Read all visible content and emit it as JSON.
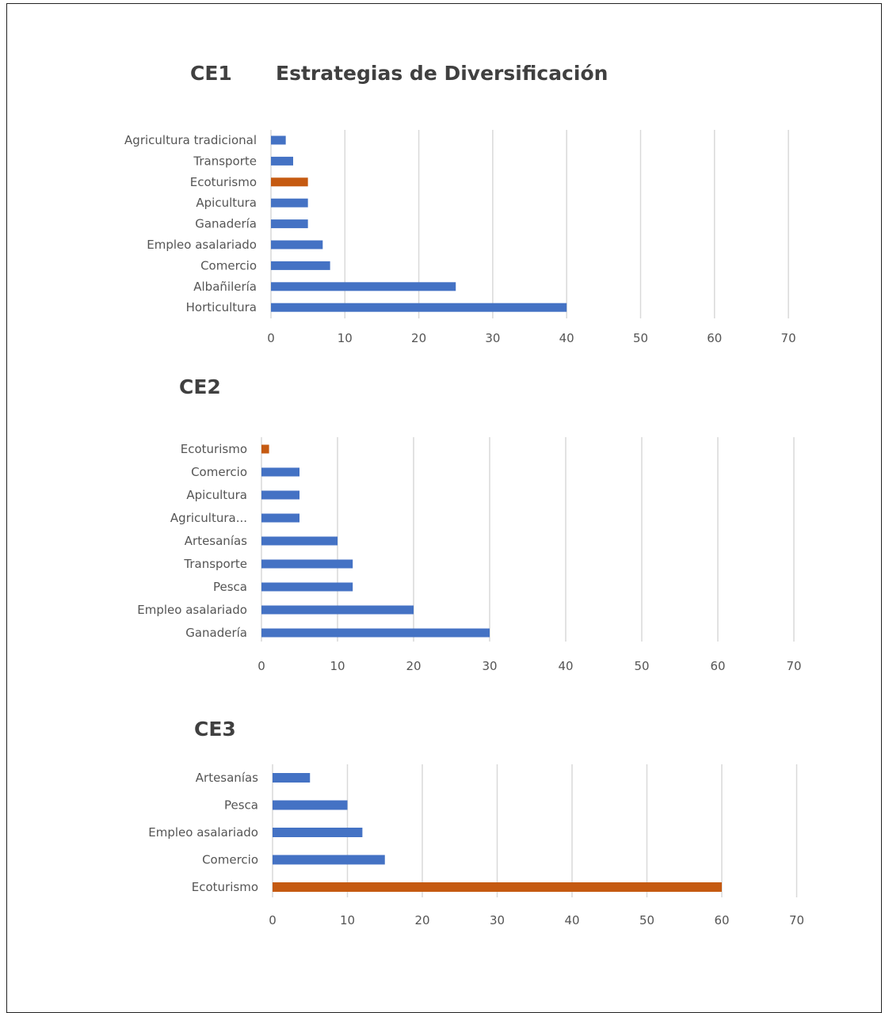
{
  "colors": {
    "blue": "#4472C4",
    "orange": "#C55A11",
    "grid": "#D9D9D9",
    "text": "#595959"
  },
  "chart_data": [
    {
      "type": "bar",
      "orientation": "horizontal",
      "title": "CE1",
      "subtitle": "Estrategias de Diversificación",
      "xlim": [
        0,
        70
      ],
      "xticks": [
        0,
        10,
        20,
        30,
        40,
        50,
        60,
        70
      ],
      "grid": true,
      "legend": "none",
      "categories": [
        "Agricultura tradicional",
        "Transporte",
        "Ecoturismo",
        "Apicultura",
        "Ganadería",
        "Empleo asalariado",
        "Comercio",
        "Albañilería",
        "Horticultura"
      ],
      "values": [
        2,
        3,
        5,
        5,
        5,
        7,
        8,
        25,
        40
      ],
      "highlight": "Ecoturismo"
    },
    {
      "type": "bar",
      "orientation": "horizontal",
      "title": "CE2",
      "xlim": [
        0,
        70
      ],
      "xticks": [
        0,
        10,
        20,
        30,
        40,
        50,
        60,
        70
      ],
      "grid": true,
      "legend": "none",
      "categories": [
        "Ecoturismo",
        "Comercio",
        "Apicultura",
        "Agricultura...",
        "Artesanías",
        "Transporte",
        "Pesca",
        "Empleo asalariado",
        "Ganadería"
      ],
      "values": [
        1,
        5,
        5,
        5,
        10,
        12,
        12,
        20,
        30
      ],
      "highlight": "Ecoturismo"
    },
    {
      "type": "bar",
      "orientation": "horizontal",
      "title": "CE3",
      "xlim": [
        0,
        70
      ],
      "xticks": [
        0,
        10,
        20,
        30,
        40,
        50,
        60,
        70
      ],
      "grid": true,
      "legend": "none",
      "categories": [
        "Artesanías",
        "Pesca",
        "Empleo asalariado",
        "Comercio",
        "Ecoturismo"
      ],
      "values": [
        5,
        10,
        12,
        15,
        60
      ],
      "highlight": "Ecoturismo"
    }
  ]
}
